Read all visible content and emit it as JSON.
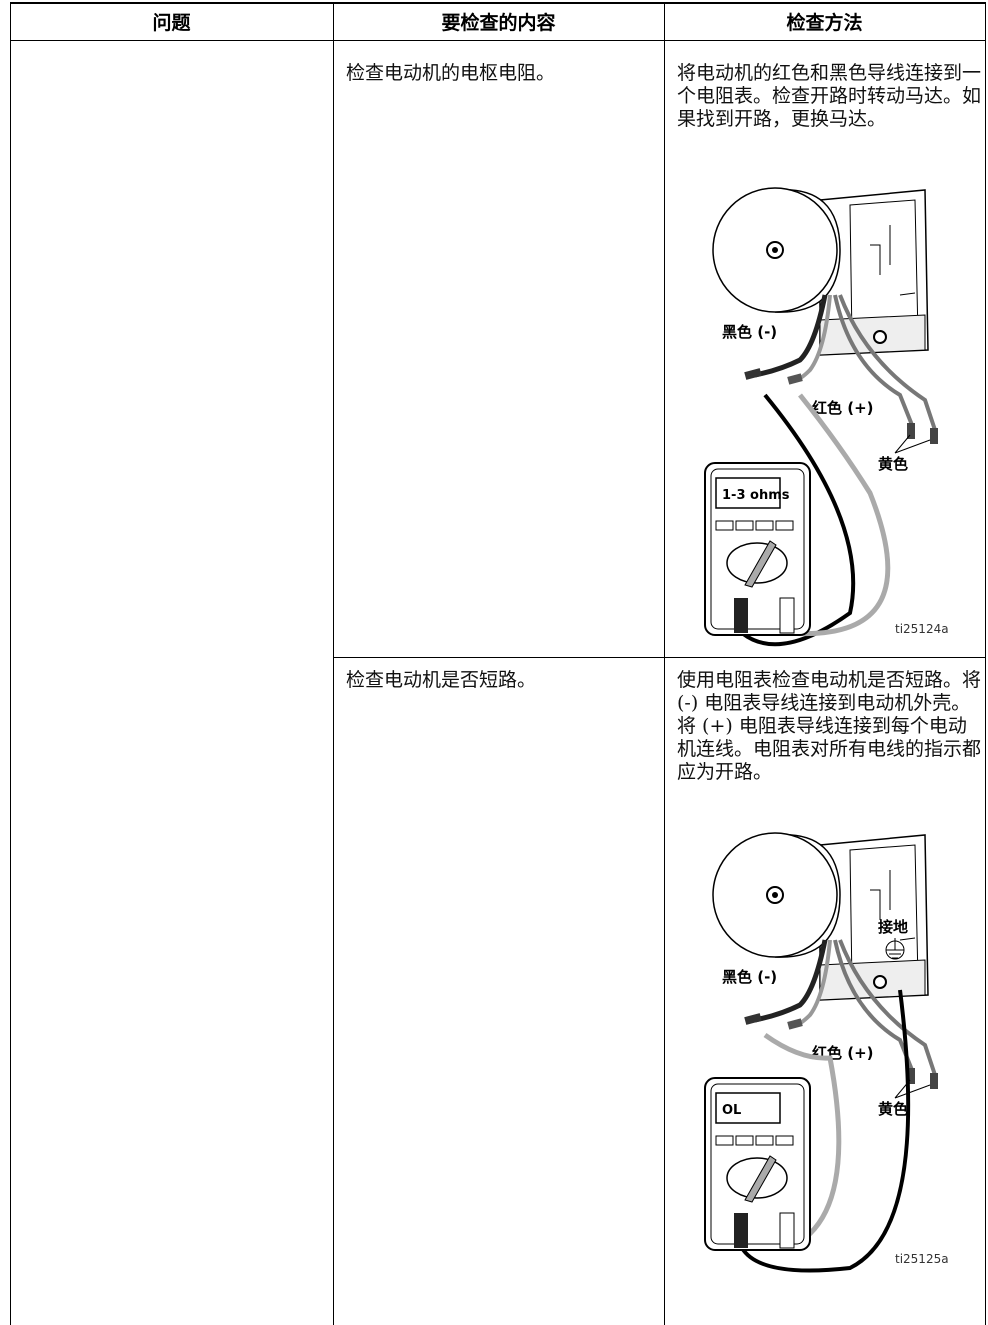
{
  "table": {
    "header": [
      "问题",
      "要检查的内容",
      "检查方法"
    ],
    "rows": [
      {
        "check": "检查电动机的电枢电阻。",
        "method": "将电动机的红色和黑色导线连接到一个电阻表。检查开路时转动马达。如果找到开路，更换马达。",
        "figure": {
          "black_label": "黑色 (-)",
          "red_label": "红色 (+)",
          "yellow_label": "黄色",
          "meter_reading": "1-3 ohms",
          "id": "ti25124a"
        }
      },
      {
        "check": "检查电动机是否短路。",
        "method": "使用电阻表检查电动机是否短路。将 (-) 电阻表导线连接到电动机外壳。将 (+) 电阻表导线连接到每个电动机连线。电阻表对所有电线的指示都应为开路。",
        "figure": {
          "ground_label": "接地",
          "black_label": "黑色 (-)",
          "red_label": "红色 (+)",
          "yellow_label": "黄色",
          "meter_reading": "OL",
          "id": "ti25125a"
        }
      }
    ]
  }
}
